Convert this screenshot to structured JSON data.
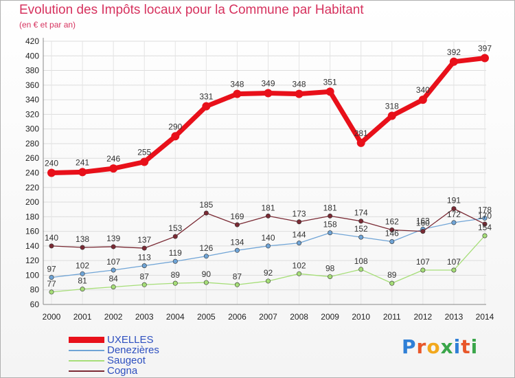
{
  "header": {
    "title": "Evolution des Impôts locaux pour la Commune par Habitant",
    "subtitle": "(en € et par an)"
  },
  "chart_data": {
    "type": "line",
    "title": "Evolution des Impôts locaux pour la Commune par Habitant",
    "subtitle": "(en € et par an)",
    "xlabel": "",
    "ylabel": "",
    "categories": [
      "2000",
      "2001",
      "2002",
      "2003",
      "2004",
      "2005",
      "2006",
      "2007",
      "2008",
      "2009",
      "2010",
      "2011",
      "2012",
      "2013",
      "2014"
    ],
    "ylim": [
      60,
      420
    ],
    "ytick_step": 20,
    "grid": true,
    "series": [
      {
        "name": "UXELLES",
        "color": "#e8101a",
        "values": [
          240,
          241,
          246,
          255,
          290,
          331,
          348,
          349,
          348,
          351,
          281,
          318,
          340,
          392,
          397
        ]
      },
      {
        "name": "Denezières",
        "color": "#6fa4d6",
        "values": [
          97,
          102,
          107,
          113,
          119,
          126,
          134,
          140,
          144,
          158,
          152,
          146,
          163,
          172,
          178
        ]
      },
      {
        "name": "Saugeot",
        "color": "#a6de78",
        "values": [
          77,
          81,
          84,
          87,
          89,
          90,
          87,
          92,
          102,
          98,
          108,
          89,
          107,
          107,
          154
        ]
      },
      {
        "name": "Cogna",
        "color": "#7a2a34",
        "values": [
          140,
          138,
          139,
          137,
          153,
          185,
          169,
          181,
          173,
          181,
          174,
          162,
          160,
          191,
          170
        ]
      }
    ],
    "legend_position": "bottom-left"
  },
  "logo": {
    "letters": [
      {
        "ch": "P",
        "color": "#2f7fd6"
      },
      {
        "ch": "r",
        "color": "#e8572a"
      },
      {
        "ch": "o",
        "color": "#f2a81d"
      },
      {
        "ch": "x",
        "color": "#3aa64a"
      },
      {
        "ch": "i",
        "color": "#2f7fd6"
      },
      {
        "ch": "t",
        "color": "#e8572a"
      },
      {
        "ch": "i",
        "color": "#3aa64a"
      }
    ]
  }
}
